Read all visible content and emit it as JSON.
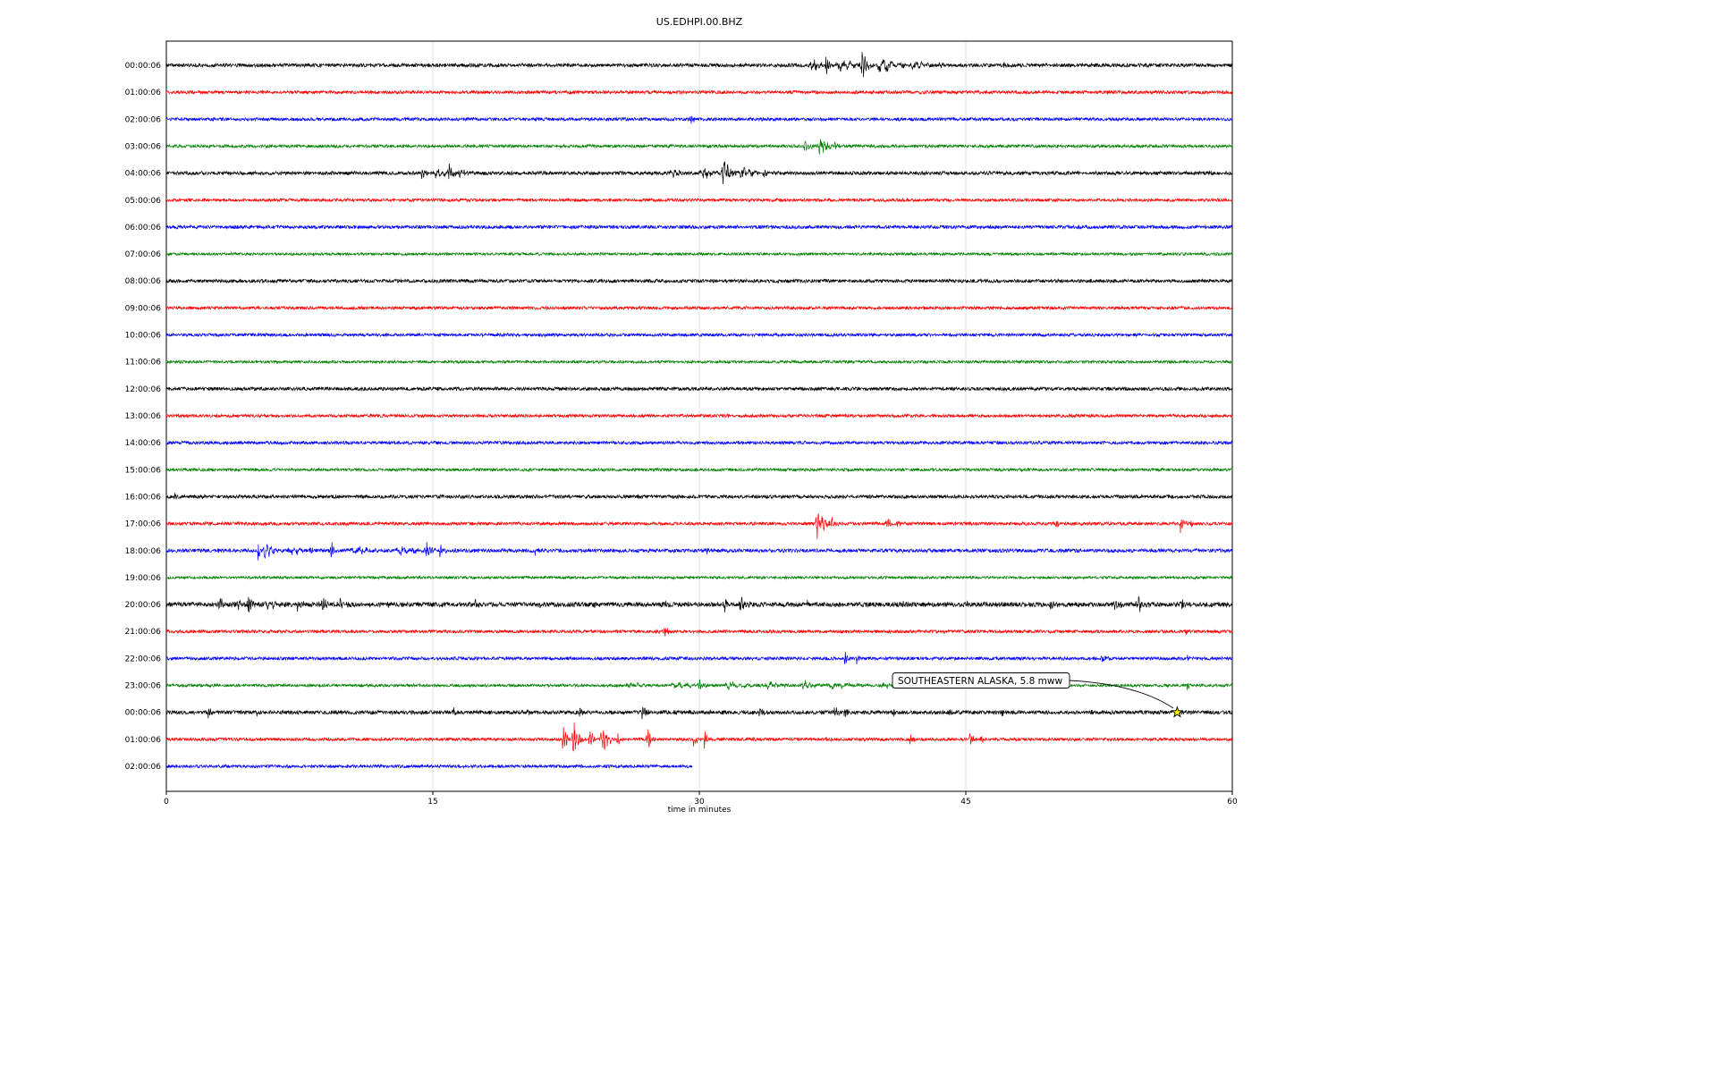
{
  "chart_data": {
    "type": "line",
    "title": "US.EDHPI.00.BHZ",
    "xlabel": "time in minutes",
    "x_unit": "minutes",
    "x_range": [
      0,
      60
    ],
    "xticks": [
      "0",
      "15",
      "30",
      "45",
      "60"
    ],
    "grid_ticks": [
      15,
      30,
      45
    ],
    "trace_color_cycle": [
      "black",
      "red",
      "blue",
      "green"
    ],
    "palette": {
      "black": "#000000",
      "red": "#ff0000",
      "blue": "#0000ff",
      "green": "#008000",
      "grid": "#d9d9d9",
      "axis": "#000000",
      "star_fill": "#ffff00"
    },
    "annotation": {
      "label": "SOUTHEASTERN ALASKA, 5.8 mww",
      "row_index": 24,
      "minute": 56.9,
      "marker": "star",
      "marker_color": "#ffff00"
    },
    "rows": [
      {
        "label": "00:00:06",
        "color": "black",
        "noise_amp": 2.0,
        "events": [
          {
            "t": 36.2,
            "d": 1.0,
            "a": 8
          },
          {
            "t": 37.0,
            "d": 0.5,
            "a": 16
          },
          {
            "t": 37.6,
            "d": 2.0,
            "a": 7
          },
          {
            "t": 39.0,
            "d": 0.7,
            "a": 22
          },
          {
            "t": 39.8,
            "d": 2.2,
            "a": 9
          },
          {
            "t": 41.8,
            "d": 1.6,
            "a": 6
          },
          {
            "t": 43.2,
            "d": 1.2,
            "a": 4
          },
          {
            "t": 47.1,
            "d": 0.3,
            "a": 5
          },
          {
            "t": 52.0,
            "d": 0.3,
            "a": 3
          }
        ]
      },
      {
        "label": "01:00:06",
        "color": "red",
        "noise_amp": 1.8,
        "events": [
          {
            "t": 8.2,
            "d": 0.2,
            "a": 3
          },
          {
            "t": 30.5,
            "d": 0.2,
            "a": 3
          }
        ]
      },
      {
        "label": "02:00:06",
        "color": "blue",
        "noise_amp": 1.8,
        "events": [
          {
            "t": 12.0,
            "d": 0.2,
            "a": 3
          },
          {
            "t": 29.4,
            "d": 0.4,
            "a": 8
          }
        ]
      },
      {
        "label": "03:00:06",
        "color": "green",
        "noise_amp": 1.7,
        "events": [
          {
            "t": 35.8,
            "d": 0.7,
            "a": 9
          },
          {
            "t": 36.6,
            "d": 1.0,
            "a": 13
          },
          {
            "t": 37.5,
            "d": 0.6,
            "a": 6
          }
        ]
      },
      {
        "label": "04:00:06",
        "color": "black",
        "noise_amp": 2.0,
        "events": [
          {
            "t": 14.3,
            "d": 0.5,
            "a": 11
          },
          {
            "t": 15.0,
            "d": 1.2,
            "a": 6
          },
          {
            "t": 15.8,
            "d": 0.5,
            "a": 12
          },
          {
            "t": 16.4,
            "d": 0.8,
            "a": 5
          },
          {
            "t": 28.3,
            "d": 1.4,
            "a": 5
          },
          {
            "t": 30.0,
            "d": 1.2,
            "a": 8
          },
          {
            "t": 31.2,
            "d": 0.9,
            "a": 20
          },
          {
            "t": 32.1,
            "d": 1.6,
            "a": 8
          },
          {
            "t": 33.5,
            "d": 0.8,
            "a": 4
          }
        ]
      },
      {
        "label": "05:00:06",
        "color": "red",
        "noise_amp": 1.7,
        "events": [
          {
            "t": 10.1,
            "d": 0.2,
            "a": 4
          }
        ]
      },
      {
        "label": "06:00:06",
        "color": "blue",
        "noise_amp": 1.9,
        "events": []
      },
      {
        "label": "07:00:06",
        "color": "green",
        "noise_amp": 1.5,
        "events": []
      },
      {
        "label": "08:00:06",
        "color": "black",
        "noise_amp": 1.9,
        "events": [
          {
            "t": 10.2,
            "d": 0.2,
            "a": 3
          }
        ]
      },
      {
        "label": "09:00:06",
        "color": "red",
        "noise_amp": 1.7,
        "events": []
      },
      {
        "label": "10:00:06",
        "color": "blue",
        "noise_amp": 1.7,
        "events": []
      },
      {
        "label": "11:00:06",
        "color": "green",
        "noise_amp": 1.5,
        "events": []
      },
      {
        "label": "12:00:06",
        "color": "black",
        "noise_amp": 1.9,
        "events": [
          {
            "t": 21.0,
            "d": 0.2,
            "a": 3
          }
        ]
      },
      {
        "label": "13:00:06",
        "color": "red",
        "noise_amp": 1.7,
        "events": []
      },
      {
        "label": "14:00:06",
        "color": "blue",
        "noise_amp": 1.8,
        "events": []
      },
      {
        "label": "15:00:06",
        "color": "green",
        "noise_amp": 1.6,
        "events": []
      },
      {
        "label": "16:00:06",
        "color": "black",
        "noise_amp": 1.9,
        "events": [
          {
            "t": 0.4,
            "d": 0.3,
            "a": 6
          },
          {
            "t": 2.0,
            "d": 0.25,
            "a": 5
          },
          {
            "t": 26.5,
            "d": 0.2,
            "a": 4
          }
        ]
      },
      {
        "label": "17:00:06",
        "color": "red",
        "noise_amp": 1.8,
        "events": [
          {
            "t": 36.5,
            "d": 0.9,
            "a": 18
          },
          {
            "t": 37.3,
            "d": 0.7,
            "a": 9
          },
          {
            "t": 40.5,
            "d": 0.5,
            "a": 9
          },
          {
            "t": 41.1,
            "d": 0.4,
            "a": 7
          },
          {
            "t": 50.0,
            "d": 0.4,
            "a": 7
          },
          {
            "t": 57.0,
            "d": 0.5,
            "a": 12
          },
          {
            "t": 57.6,
            "d": 0.3,
            "a": 6
          }
        ]
      },
      {
        "label": "18:00:06",
        "color": "blue",
        "noise_amp": 2.0,
        "events": [
          {
            "t": 2.8,
            "d": 0.4,
            "a": 6
          },
          {
            "t": 5.1,
            "d": 0.2,
            "a": 45
          },
          {
            "t": 5.35,
            "d": 1.2,
            "a": 9
          },
          {
            "t": 6.8,
            "d": 1.6,
            "a": 5
          },
          {
            "t": 8.0,
            "d": 0.5,
            "a": 8
          },
          {
            "t": 9.2,
            "d": 0.5,
            "a": 9
          },
          {
            "t": 10.3,
            "d": 2.2,
            "a": 4
          },
          {
            "t": 12.8,
            "d": 2.2,
            "a": 5
          },
          {
            "t": 14.5,
            "d": 0.7,
            "a": 10
          },
          {
            "t": 15.3,
            "d": 0.6,
            "a": 8
          },
          {
            "t": 16.2,
            "d": 0.8,
            "a": 4
          },
          {
            "t": 20.7,
            "d": 0.4,
            "a": 5
          },
          {
            "t": 24.8,
            "d": 0.3,
            "a": 4
          },
          {
            "t": 30.4,
            "d": 0.3,
            "a": 4
          }
        ]
      },
      {
        "label": "19:00:06",
        "color": "green",
        "noise_amp": 1.5,
        "events": [
          {
            "t": 2.7,
            "d": 0.2,
            "a": 5
          }
        ]
      },
      {
        "label": "20:00:06",
        "color": "black",
        "noise_amp": 2.6,
        "events": [
          {
            "t": 2.9,
            "d": 0.5,
            "a": 10
          },
          {
            "t": 3.7,
            "d": 1.0,
            "a": 7
          },
          {
            "t": 4.5,
            "d": 0.5,
            "a": 12
          },
          {
            "t": 5.5,
            "d": 1.5,
            "a": 6
          },
          {
            "t": 7.3,
            "d": 0.5,
            "a": 11
          },
          {
            "t": 8.7,
            "d": 0.6,
            "a": 9
          },
          {
            "t": 9.6,
            "d": 0.8,
            "a": 6
          },
          {
            "t": 12.4,
            "d": 0.3,
            "a": 6
          },
          {
            "t": 17.3,
            "d": 0.4,
            "a": 7
          },
          {
            "t": 21.0,
            "d": 0.3,
            "a": 5
          },
          {
            "t": 24.0,
            "d": 0.3,
            "a": 4
          },
          {
            "t": 28.0,
            "d": 0.5,
            "a": 5
          },
          {
            "t": 31.3,
            "d": 0.8,
            "a": 8
          },
          {
            "t": 32.2,
            "d": 0.8,
            "a": 9
          },
          {
            "t": 36.0,
            "d": 0.3,
            "a": 4
          },
          {
            "t": 41.4,
            "d": 0.3,
            "a": 5
          },
          {
            "t": 45.0,
            "d": 0.3,
            "a": 4
          },
          {
            "t": 49.7,
            "d": 0.5,
            "a": 7
          },
          {
            "t": 53.3,
            "d": 0.6,
            "a": 9
          },
          {
            "t": 54.5,
            "d": 0.9,
            "a": 10
          },
          {
            "t": 57.1,
            "d": 0.4,
            "a": 6
          }
        ]
      },
      {
        "label": "21:00:06",
        "color": "red",
        "noise_amp": 1.7,
        "events": [
          {
            "t": 27.5,
            "d": 0.4,
            "a": 7
          },
          {
            "t": 28.0,
            "d": 0.45,
            "a": 8
          },
          {
            "t": 34.0,
            "d": 0.2,
            "a": 4
          },
          {
            "t": 44.0,
            "d": 0.2,
            "a": 3
          },
          {
            "t": 57.3,
            "d": 0.3,
            "a": 4
          }
        ]
      },
      {
        "label": "22:00:06",
        "color": "blue",
        "noise_amp": 1.8,
        "events": [
          {
            "t": 38.1,
            "d": 0.5,
            "a": 8
          },
          {
            "t": 38.8,
            "d": 0.35,
            "a": 6
          },
          {
            "t": 52.6,
            "d": 0.5,
            "a": 8
          },
          {
            "t": 57.4,
            "d": 0.3,
            "a": 5
          }
        ]
      },
      {
        "label": "23:00:06",
        "color": "green",
        "noise_amp": 1.6,
        "events": [
          {
            "t": 25.8,
            "d": 1.6,
            "a": 4
          },
          {
            "t": 28.3,
            "d": 2.2,
            "a": 4
          },
          {
            "t": 29.9,
            "d": 0.5,
            "a": 8
          },
          {
            "t": 31.3,
            "d": 2.2,
            "a": 5
          },
          {
            "t": 33.6,
            "d": 1.6,
            "a": 5
          },
          {
            "t": 35.7,
            "d": 1.1,
            "a": 6
          },
          {
            "t": 37.0,
            "d": 3.0,
            "a": 4
          },
          {
            "t": 40.0,
            "d": 1.6,
            "a": 4
          },
          {
            "t": 47.4,
            "d": 0.3,
            "a": 5
          },
          {
            "t": 57.4,
            "d": 0.4,
            "a": 5
          }
        ]
      },
      {
        "label": "00:00:06",
        "color": "black",
        "noise_amp": 2.1,
        "events": [
          {
            "t": 2.3,
            "d": 0.4,
            "a": 7
          },
          {
            "t": 5.0,
            "d": 0.3,
            "a": 4
          },
          {
            "t": 16.1,
            "d": 0.3,
            "a": 5
          },
          {
            "t": 20.2,
            "d": 0.4,
            "a": 6
          },
          {
            "t": 23.2,
            "d": 0.4,
            "a": 8
          },
          {
            "t": 26.7,
            "d": 0.5,
            "a": 10
          },
          {
            "t": 28.5,
            "d": 0.3,
            "a": 5
          },
          {
            "t": 30.5,
            "d": 0.4,
            "a": 6
          },
          {
            "t": 33.3,
            "d": 0.5,
            "a": 7
          },
          {
            "t": 37.5,
            "d": 0.5,
            "a": 12
          },
          {
            "t": 38.1,
            "d": 0.4,
            "a": 10
          },
          {
            "t": 40.9,
            "d": 0.3,
            "a": 6
          },
          {
            "t": 44.0,
            "d": 0.3,
            "a": 5
          },
          {
            "t": 47.0,
            "d": 0.3,
            "a": 6
          },
          {
            "t": 52.0,
            "d": 0.2,
            "a": 4
          }
        ]
      },
      {
        "label": "01:00:06",
        "color": "red",
        "noise_amp": 1.7,
        "events": [
          {
            "t": 22.2,
            "d": 0.6,
            "a": 18
          },
          {
            "t": 22.8,
            "d": 0.7,
            "a": 22
          },
          {
            "t": 23.7,
            "d": 0.6,
            "a": 16
          },
          {
            "t": 24.4,
            "d": 0.8,
            "a": 20
          },
          {
            "t": 25.3,
            "d": 0.5,
            "a": 9
          },
          {
            "t": 27.0,
            "d": 0.5,
            "a": 14
          },
          {
            "t": 29.6,
            "d": 0.5,
            "a": 9
          },
          {
            "t": 30.2,
            "d": 0.5,
            "a": 10
          },
          {
            "t": 33.0,
            "d": 0.3,
            "a": 4
          },
          {
            "t": 37.0,
            "d": 0.2,
            "a": 4
          },
          {
            "t": 41.8,
            "d": 0.4,
            "a": 7
          },
          {
            "t": 45.1,
            "d": 0.5,
            "a": 9
          },
          {
            "t": 45.8,
            "d": 0.4,
            "a": 7
          },
          {
            "t": 50.0,
            "d": 0.2,
            "a": 3
          },
          {
            "t": 55.0,
            "d": 0.2,
            "a": 3
          }
        ]
      },
      {
        "label": "02:00:06",
        "color": "blue",
        "noise_amp": 1.7,
        "end": 29.6,
        "events": []
      }
    ]
  }
}
